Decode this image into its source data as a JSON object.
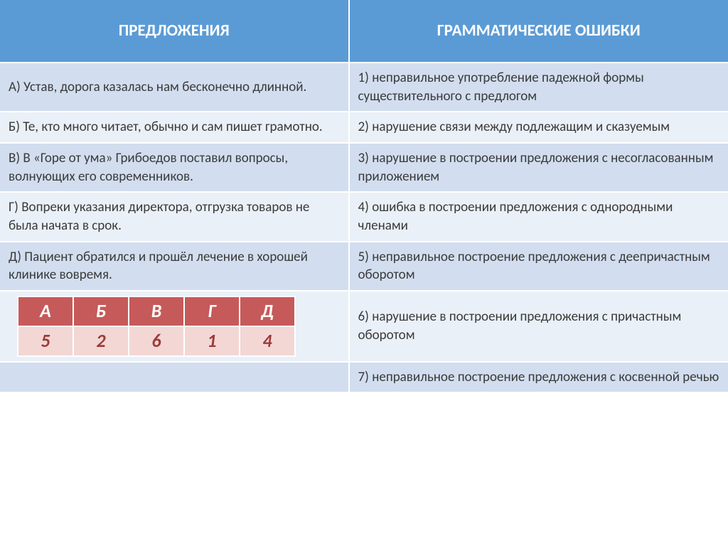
{
  "colors": {
    "header_bg": "#5b9bd5",
    "header_text": "#ffffff",
    "row_alt1_bg": "#d2deef",
    "row_alt2_bg": "#eaf0f8",
    "text_color": "#3a3a3a",
    "answer_header_bg": "#c65a5a",
    "answer_header_text": "#ffffff",
    "answer_value_bg": "#f2d7d5",
    "answer_value_text": "#9c3b39"
  },
  "header": {
    "left": "ПРЕДЛОЖЕНИЯ",
    "right": "ГРАММАТИЧЕСКИЕ ОШИБКИ"
  },
  "rows": [
    {
      "left": "А) Устав, дорога казалась нам бесконечно длинной.",
      "right": "1) неправильное употребление падежной формы существительного с предлогом"
    },
    {
      "left": "Б) Те, кто много читает, обычно и сам пишет грамотно.",
      "right": "2) нарушение связи между подлежащим и сказуемым"
    },
    {
      "left": "В) В «Горе от ума» Грибоедов поставил вопросы, волнующих его современников.",
      "right": "3) нарушение в построении предложения с несогласованным приложением"
    },
    {
      "left": "Г) Вопреки указания директора, отгрузка товаров не была начата в срок.",
      "right": "4) ошибка в построении предложения с однородными членами"
    },
    {
      "left": "  Д) Пациент обратился и прошёл лечение в хорошей клинике вовремя.",
      "right": "5) неправильное построение предложения с деепричастным оборотом"
    }
  ],
  "row6_right": "6) нарушение в построении предложения с причастным оборотом",
  "row7_right": "7) неправильное построение предложения с косвенной речью",
  "answers": {
    "letters": [
      "А",
      "Б",
      "В",
      "Г",
      "Д"
    ],
    "values": [
      "5",
      "2",
      "6",
      "1",
      "4"
    ]
  }
}
